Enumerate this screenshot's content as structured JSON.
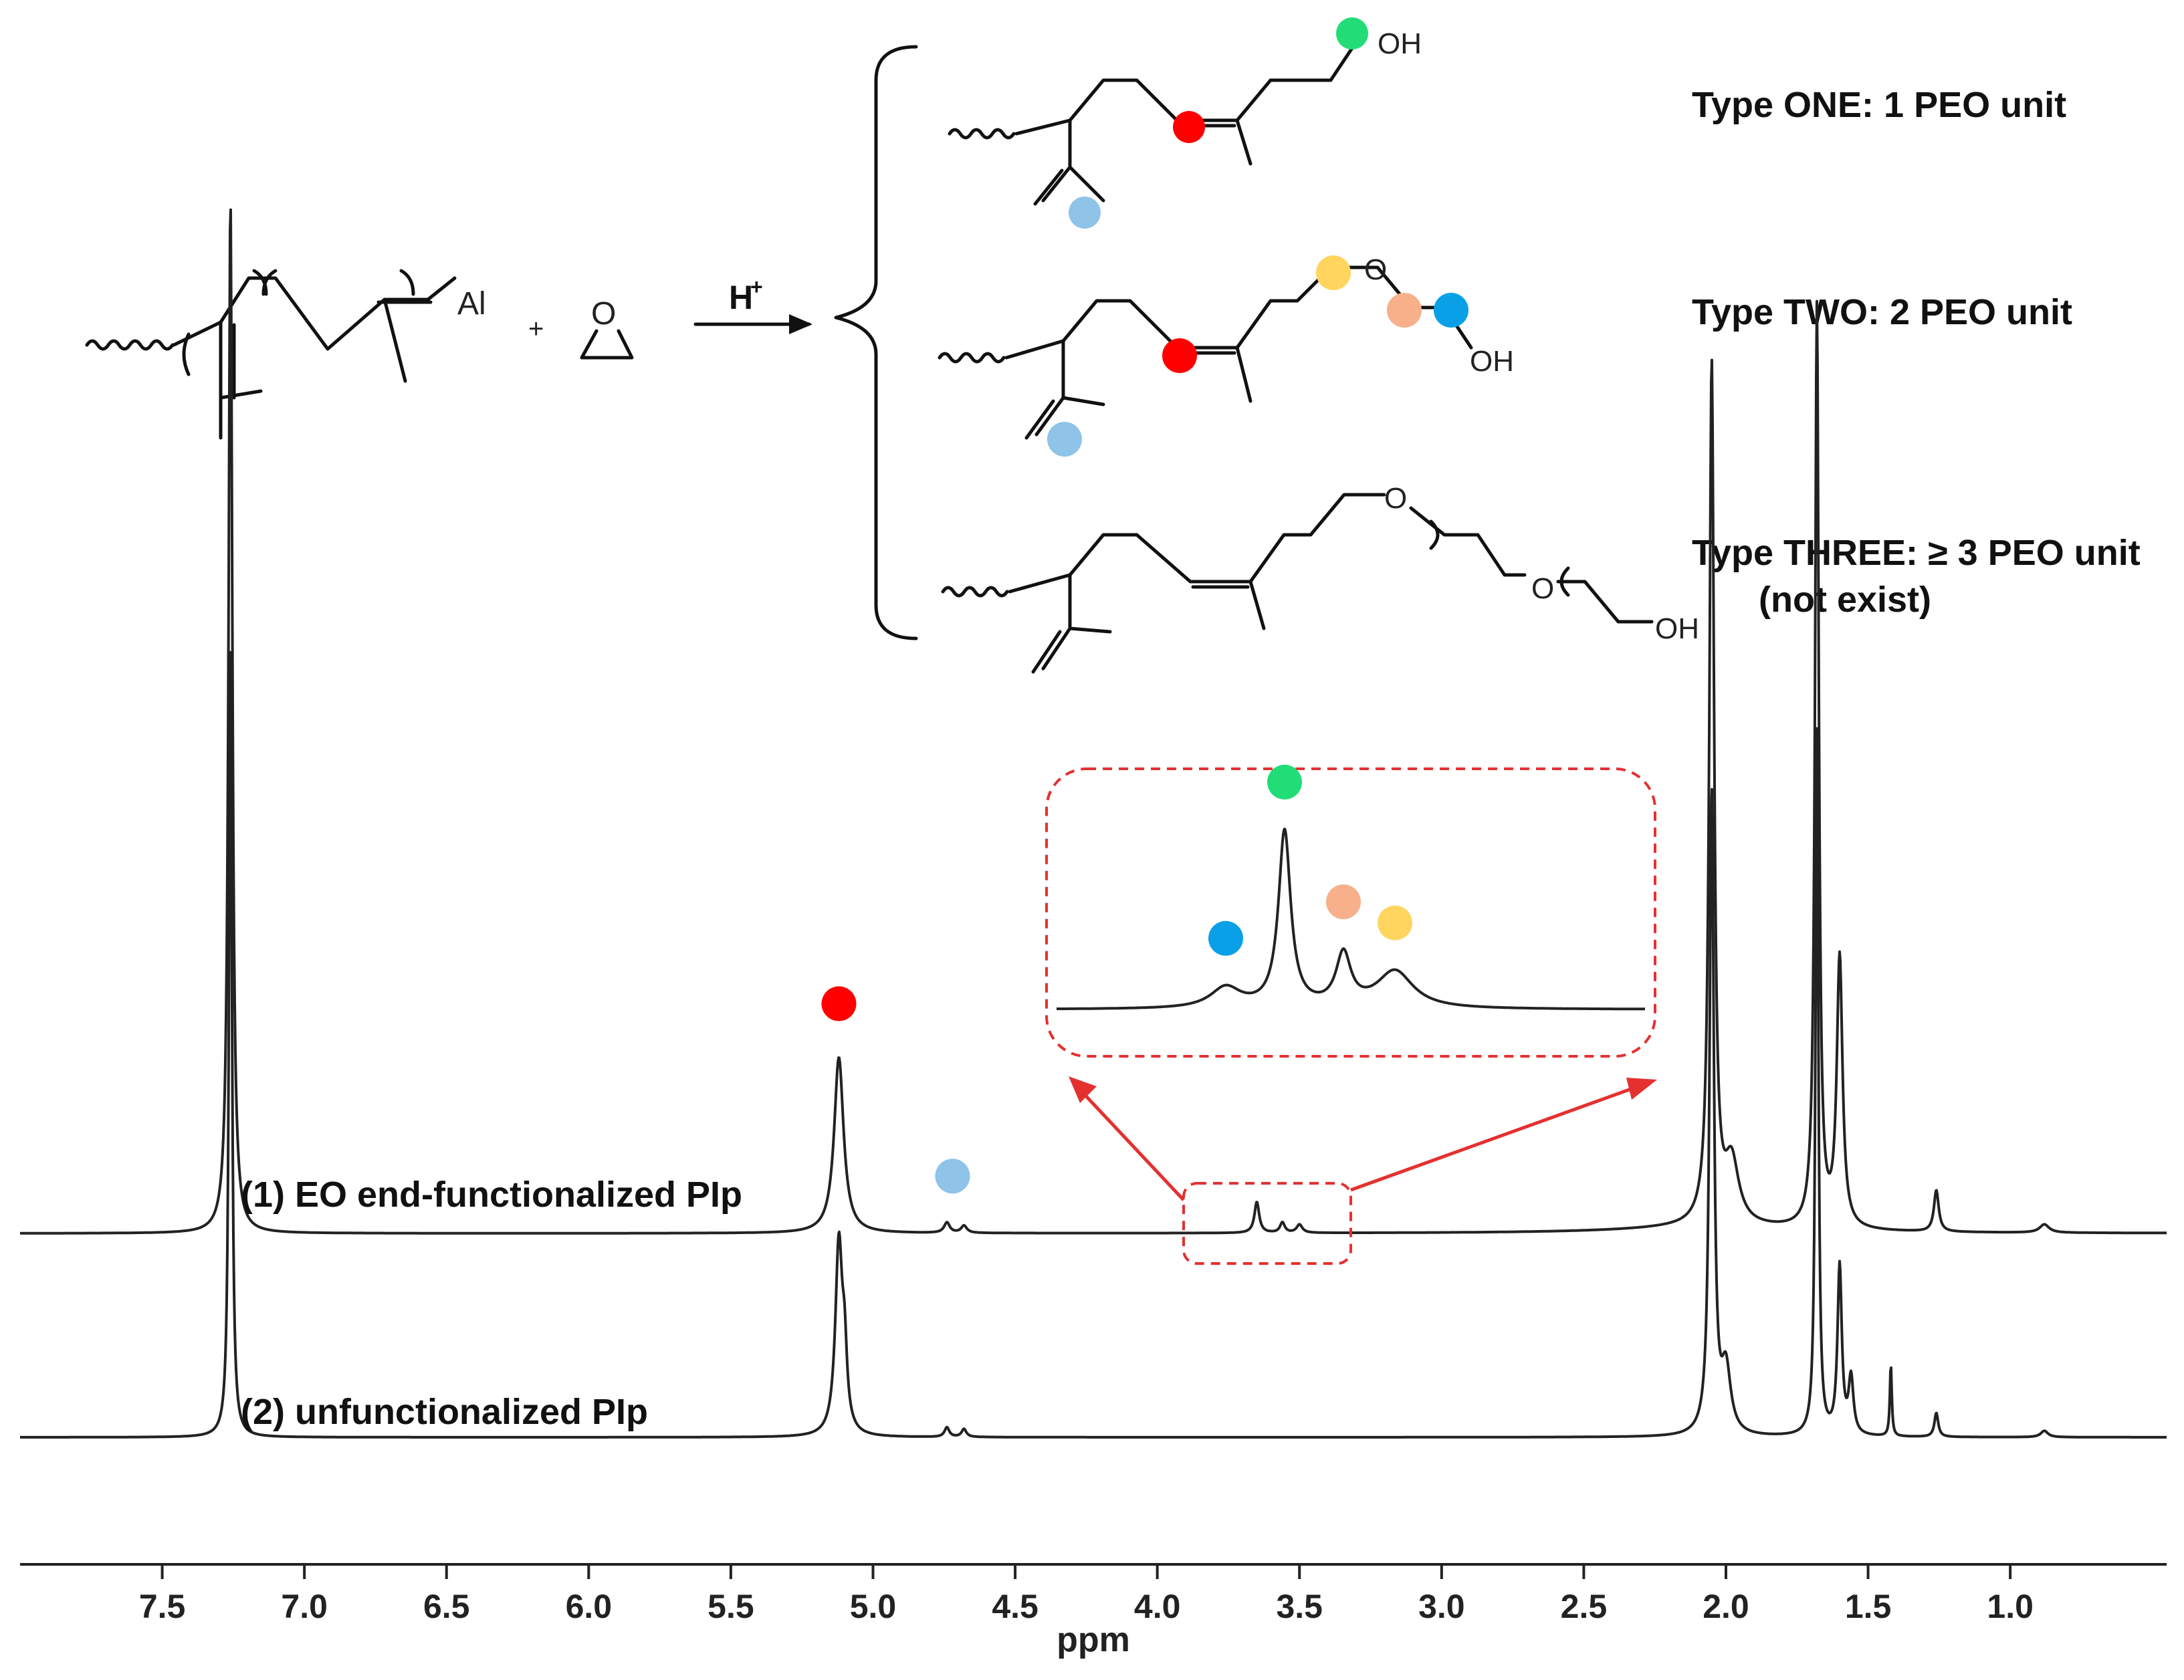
{
  "scheme": {
    "reagent_al": "Al",
    "plus": "+",
    "epoxide_o": "O",
    "acid": "H",
    "acid_charge": "+",
    "hydroxyl": "OH",
    "ether_o": "O",
    "types": [
      {
        "label": "Type ONE: 1 PEO unit",
        "note": ""
      },
      {
        "label": "Type TWO: 2 PEO unit",
        "note": ""
      },
      {
        "label": "Type THREE: ≥ 3 PEO unit",
        "note": "(not exist)"
      }
    ]
  },
  "marker_colors": {
    "vinyl_ch": "#ff0000",
    "vinylidene": "#8fc3e8",
    "ch2_oh_one": "#22dd77",
    "ch2_o_a": "#ffd560",
    "ch2_o_b": "#f7b08a",
    "ch2_oh_two": "#0aa0e8"
  },
  "chart_data": {
    "type": "line",
    "xlabel": "ppm",
    "xlim": [
      8.0,
      0.45
    ],
    "x_reversed": true,
    "xticks": [
      7.5,
      7.0,
      6.5,
      6.0,
      5.5,
      5.0,
      4.5,
      4.0,
      3.5,
      3.0,
      2.5,
      2.0,
      1.5,
      1.0
    ],
    "series": [
      {
        "name": "(1) EO end-functionalized PIp",
        "baseline": 0,
        "peaks": [
          {
            "x": 7.26,
            "h": 1.0,
            "w": 0.008
          },
          {
            "x": 5.12,
            "h": 0.17,
            "w": 0.02
          },
          {
            "x": 4.74,
            "h": 0.01,
            "w": 0.012
          },
          {
            "x": 4.68,
            "h": 0.007,
            "w": 0.012
          },
          {
            "x": 3.65,
            "h": 0.03,
            "w": 0.01
          },
          {
            "x": 3.56,
            "h": 0.01,
            "w": 0.01
          },
          {
            "x": 3.5,
            "h": 0.008,
            "w": 0.012
          },
          {
            "x": 2.05,
            "h": 0.83,
            "w": 0.01
          },
          {
            "x": 1.98,
            "h": 0.06,
            "w": 0.03
          },
          {
            "x": 1.68,
            "h": 0.89,
            "w": 0.008
          },
          {
            "x": 1.6,
            "h": 0.26,
            "w": 0.012
          },
          {
            "x": 1.26,
            "h": 0.04,
            "w": 0.01
          },
          {
            "x": 0.88,
            "h": 0.008,
            "w": 0.02
          }
        ]
      },
      {
        "name": "(2) unfunctionalized PIp",
        "baseline": 0,
        "peaks": [
          {
            "x": 7.26,
            "h": 1.0,
            "w": 0.006
          },
          {
            "x": 5.12,
            "h": 0.24,
            "w": 0.015
          },
          {
            "x": 5.1,
            "h": 0.08,
            "w": 0.01
          },
          {
            "x": 4.74,
            "h": 0.012,
            "w": 0.01
          },
          {
            "x": 4.68,
            "h": 0.01,
            "w": 0.01
          },
          {
            "x": 2.05,
            "h": 0.8,
            "w": 0.009
          },
          {
            "x": 2.0,
            "h": 0.08,
            "w": 0.02
          },
          {
            "x": 1.68,
            "h": 0.88,
            "w": 0.006
          },
          {
            "x": 1.6,
            "h": 0.21,
            "w": 0.009
          },
          {
            "x": 1.56,
            "h": 0.07,
            "w": 0.01
          },
          {
            "x": 1.42,
            "h": 0.09,
            "w": 0.004
          },
          {
            "x": 1.26,
            "h": 0.03,
            "w": 0.008
          },
          {
            "x": 0.88,
            "h": 0.008,
            "w": 0.015
          }
        ]
      }
    ],
    "inset": {
      "xlim": [
        3.95,
        3.15
      ],
      "peaks": [
        {
          "x": 3.72,
          "h": 0.1,
          "w": 0.025
        },
        {
          "x": 3.64,
          "h": 0.85,
          "w": 0.01
        },
        {
          "x": 3.56,
          "h": 0.25,
          "w": 0.012
        },
        {
          "x": 3.49,
          "h": 0.18,
          "w": 0.03
        }
      ]
    },
    "markers": [
      {
        "at": 5.12,
        "color": "#ff0000"
      },
      {
        "at": 4.72,
        "color": "#8fc3e8"
      },
      {
        "inset_at": 3.72,
        "color": "#0aa0e8"
      },
      {
        "inset_at": 3.64,
        "color": "#22dd77"
      },
      {
        "inset_at": 3.56,
        "color": "#f7b08a"
      },
      {
        "inset_at": 3.49,
        "color": "#ffd560"
      }
    ]
  }
}
